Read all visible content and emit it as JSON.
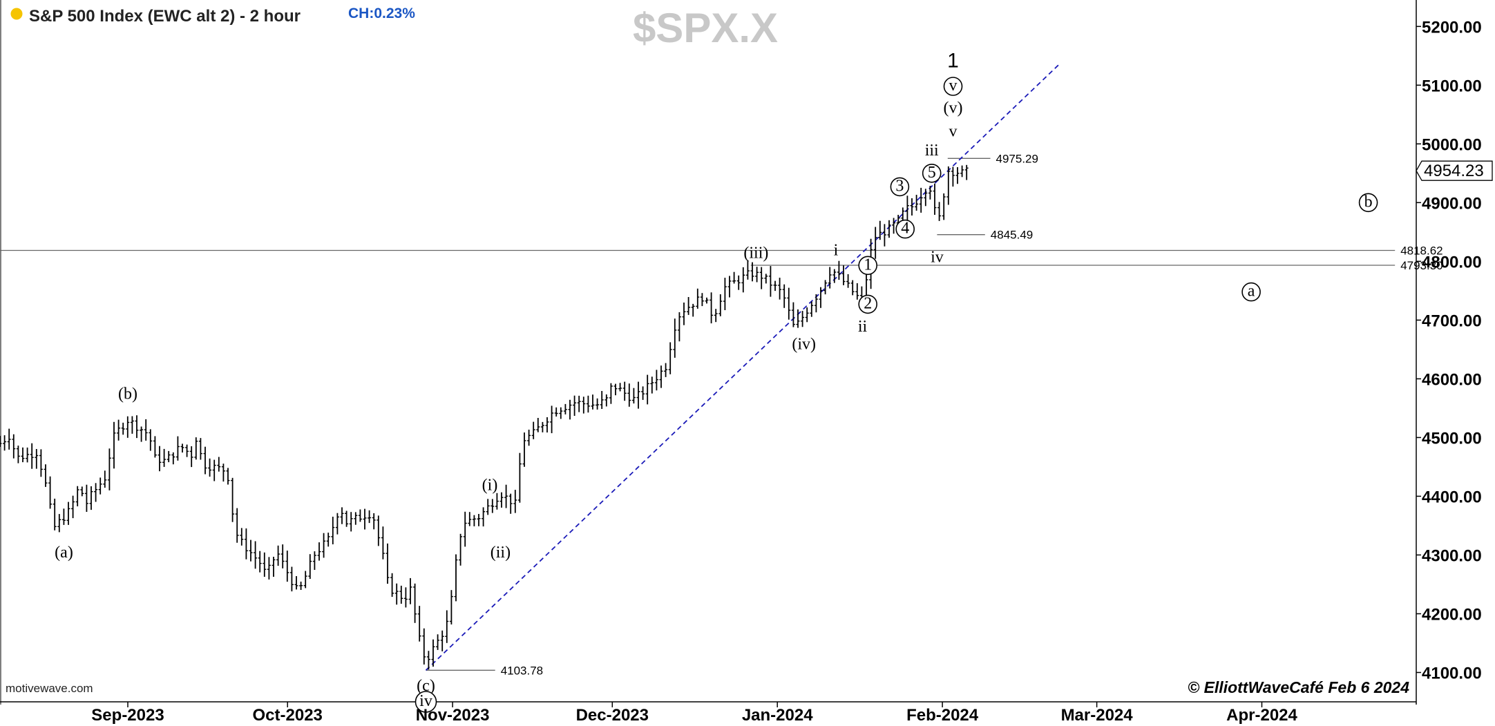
{
  "header": {
    "title": "S&P 500 Index (EWC alt 2) - 2 hour",
    "change": "CH:0.23%",
    "symbol": "$SPX.X",
    "status_dot_color": "#f5c400",
    "change_color": "#1a56c4"
  },
  "footer": {
    "source": "motivewave.com",
    "copyright": "© ElliottWaveCafé Feb 6 2024"
  },
  "chart_data": {
    "type": "bar",
    "ylim": [
      4050,
      5245
    ],
    "x_range": [
      "2023-08-08",
      "2024-04-30"
    ],
    "y_ticks": [
      {
        "v": 5200,
        "label": "5200.00"
      },
      {
        "v": 5100,
        "label": "5100.00"
      },
      {
        "v": 5000,
        "label": "5000.00"
      },
      {
        "v": 4900,
        "label": "4900.00"
      },
      {
        "v": 4800,
        "label": "4800.00"
      },
      {
        "v": 4700,
        "label": "4700.00"
      },
      {
        "v": 4600,
        "label": "4600.00"
      },
      {
        "v": 4500,
        "label": "4500.00"
      },
      {
        "v": 4400,
        "label": "4400.00"
      },
      {
        "v": 4300,
        "label": "4300.00"
      },
      {
        "v": 4200,
        "label": "4200.00"
      },
      {
        "v": 4100,
        "label": "4100.00"
      }
    ],
    "x_ticks": [
      {
        "date": "2023-09-01",
        "label": "Sep-2023"
      },
      {
        "date": "2023-10-01",
        "label": "Oct-2023"
      },
      {
        "date": "2023-11-01",
        "label": "Nov-2023"
      },
      {
        "date": "2023-12-01",
        "label": "Dec-2023"
      },
      {
        "date": "2024-01-01",
        "label": "Jan-2024"
      },
      {
        "date": "2024-02-01",
        "label": "Feb-2024"
      },
      {
        "date": "2024-03-01",
        "label": "Mar-2024"
      },
      {
        "date": "2024-04-01",
        "label": "Apr-2024"
      }
    ],
    "last_price": {
      "v": 4954.23,
      "label": "4954.23"
    },
    "price_path": [
      [
        "2023-08-08",
        4490
      ],
      [
        "2023-08-10",
        4505
      ],
      [
        "2023-08-11",
        4465
      ],
      [
        "2023-08-15",
        4475
      ],
      [
        "2023-08-17",
        4405
      ],
      [
        "2023-08-18",
        4345
      ],
      [
        "2023-08-21",
        4375
      ],
      [
        "2023-08-22",
        4395
      ],
      [
        "2023-08-23",
        4420
      ],
      [
        "2023-08-24",
        4385
      ],
      [
        "2023-08-25",
        4400
      ],
      [
        "2023-08-28",
        4435
      ],
      [
        "2023-08-29",
        4495
      ],
      [
        "2023-08-30",
        4510
      ],
      [
        "2023-08-31",
        4520
      ],
      [
        "2023-09-01",
        4530
      ],
      [
        "2023-09-05",
        4505
      ],
      [
        "2023-09-06",
        4465
      ],
      [
        "2023-09-08",
        4460
      ],
      [
        "2023-09-11",
        4485
      ],
      [
        "2023-09-13",
        4470
      ],
      [
        "2023-09-14",
        4505
      ],
      [
        "2023-09-15",
        4455
      ],
      [
        "2023-09-19",
        4445
      ],
      [
        "2023-09-20",
        4430
      ],
      [
        "2023-09-21",
        4345
      ],
      [
        "2023-09-22",
        4325
      ],
      [
        "2023-09-26",
        4285
      ],
      [
        "2023-09-27",
        4265
      ],
      [
        "2023-09-29",
        4305
      ],
      [
        "2023-10-03",
        4235
      ],
      [
        "2023-10-04",
        4255
      ],
      [
        "2023-10-06",
        4300
      ],
      [
        "2023-10-09",
        4330
      ],
      [
        "2023-10-10",
        4365
      ],
      [
        "2023-10-11",
        4380
      ],
      [
        "2023-10-12",
        4355
      ],
      [
        "2023-10-16",
        4370
      ],
      [
        "2023-10-17",
        4370
      ],
      [
        "2023-10-19",
        4295
      ],
      [
        "2023-10-20",
        4245
      ],
      [
        "2023-10-23",
        4225
      ],
      [
        "2023-10-24",
        4245
      ],
      [
        "2023-10-25",
        4195
      ],
      [
        "2023-10-26",
        4145
      ],
      [
        "2023-10-27",
        4120
      ],
      [
        "2023-10-30",
        4165
      ],
      [
        "2023-10-31",
        4185
      ],
      [
        "2023-11-01",
        4235
      ],
      [
        "2023-11-02",
        4315
      ],
      [
        "2023-11-03",
        4355
      ],
      [
        "2023-11-06",
        4365
      ],
      [
        "2023-11-08",
        4385
      ],
      [
        "2023-11-10",
        4405
      ],
      [
        "2023-11-13",
        4385
      ],
      [
        "2023-11-14",
        4495
      ],
      [
        "2023-11-16",
        4505
      ],
      [
        "2023-11-20",
        4545
      ],
      [
        "2023-11-24",
        4560
      ],
      [
        "2023-11-28",
        4555
      ],
      [
        "2023-11-30",
        4565
      ],
      [
        "2023-12-01",
        4590
      ],
      [
        "2023-12-05",
        4565
      ],
      [
        "2023-12-07",
        4580
      ],
      [
        "2023-12-11",
        4620
      ],
      [
        "2023-12-13",
        4700
      ],
      [
        "2023-12-14",
        4715
      ],
      [
        "2023-12-18",
        4740
      ],
      [
        "2023-12-20",
        4705
      ],
      [
        "2023-12-22",
        4755
      ],
      [
        "2023-12-27",
        4780
      ],
      [
        "2023-12-29",
        4775
      ],
      [
        "2024-01-02",
        4745
      ],
      [
        "2024-01-04",
        4690
      ],
      [
        "2024-01-05",
        4695
      ],
      [
        "2024-01-09",
        4750
      ],
      [
        "2024-01-11",
        4785
      ],
      [
        "2024-01-12",
        4780
      ],
      [
        "2024-01-16",
        4740
      ],
      [
        "2024-01-17",
        4735
      ],
      [
        "2024-01-18",
        4785
      ],
      [
        "2024-01-19",
        4840
      ],
      [
        "2024-01-22",
        4855
      ],
      [
        "2024-01-24",
        4870
      ],
      [
        "2024-01-25",
        4890
      ],
      [
        "2024-01-26",
        4890
      ],
      [
        "2024-01-29",
        4925
      ],
      [
        "2024-01-30",
        4925
      ],
      [
        "2024-01-31",
        4855
      ],
      [
        "2024-02-01",
        4900
      ],
      [
        "2024-02-02",
        4955
      ],
      [
        "2024-02-05",
        4950
      ],
      [
        "2024-02-06",
        4954
      ]
    ],
    "levels": [
      {
        "name": "high-4975",
        "label": "4975.29",
        "v": 4975.29,
        "from": "2024-02-02",
        "to": "2024-02-10"
      },
      {
        "name": "low-4845",
        "label": "4845.49",
        "v": 4845.49,
        "from": "2024-01-31",
        "to": "2024-02-09"
      },
      {
        "name": "level-4818",
        "label": "4818.62",
        "v": 4818.62,
        "from": "2023-08-08",
        "to": "2024-04-26"
      },
      {
        "name": "level-4793",
        "label": "4793.30",
        "v": 4793.3,
        "from": "2023-12-27",
        "to": "2024-04-26"
      },
      {
        "name": "low-4103",
        "label": "4103.78",
        "v": 4103.78,
        "from": "2023-10-27",
        "to": "2023-11-09"
      }
    ],
    "trendline": {
      "from": [
        "2023-10-27",
        4103.78
      ],
      "to": [
        "2024-02-23",
        5136
      ],
      "color": "#1a1ab8"
    },
    "wave_labels": [
      {
        "text": "(a)",
        "date": "2023-08-20",
        "v": 4305,
        "circled": false
      },
      {
        "text": "(b)",
        "date": "2023-09-01",
        "v": 4575,
        "circled": false
      },
      {
        "text": "(c)",
        "date": "2023-10-27",
        "v": 4078,
        "circled": false
      },
      {
        "text": "iv",
        "date": "2023-10-27",
        "v": 4050,
        "circled": true
      },
      {
        "text": "(i)",
        "date": "2023-11-08",
        "v": 4420,
        "circled": false
      },
      {
        "text": "(ii)",
        "date": "2023-11-10",
        "v": 4305,
        "circled": false
      },
      {
        "text": "(iii)",
        "date": "2023-12-28",
        "v": 4815,
        "circled": false
      },
      {
        "text": "(iv)",
        "date": "2024-01-06",
        "v": 4660,
        "circled": false
      },
      {
        "text": "i",
        "date": "2024-01-12",
        "v": 4820,
        "circled": false
      },
      {
        "text": "ii",
        "date": "2024-01-17",
        "v": 4690,
        "circled": false
      },
      {
        "text": "1",
        "date": "2024-01-18",
        "v": 4793,
        "circled": true
      },
      {
        "text": "2",
        "date": "2024-01-18",
        "v": 4727,
        "circled": true
      },
      {
        "text": "3",
        "date": "2024-01-24",
        "v": 4927,
        "circled": true
      },
      {
        "text": "4",
        "date": "2024-01-25",
        "v": 4855,
        "circled": true
      },
      {
        "text": "5",
        "date": "2024-01-30",
        "v": 4950,
        "circled": true
      },
      {
        "text": "iii",
        "date": "2024-01-30",
        "v": 4990,
        "circled": false
      },
      {
        "text": "iv",
        "date": "2024-01-31",
        "v": 4808,
        "circled": false
      },
      {
        "text": "v",
        "date": "2024-02-03",
        "v": 5022,
        "circled": false
      },
      {
        "text": "(v)",
        "date": "2024-02-03",
        "v": 5062,
        "circled": false
      },
      {
        "text": "v",
        "date": "2024-02-03",
        "v": 5098,
        "circled": true
      },
      {
        "text": "1",
        "date": "2024-02-03",
        "v": 5140,
        "circled": false,
        "style": "sans"
      },
      {
        "text": "a",
        "date": "2024-03-30",
        "v": 4748,
        "circled": true
      },
      {
        "text": "b",
        "date": "2024-04-21",
        "v": 4900,
        "circled": true
      }
    ]
  }
}
